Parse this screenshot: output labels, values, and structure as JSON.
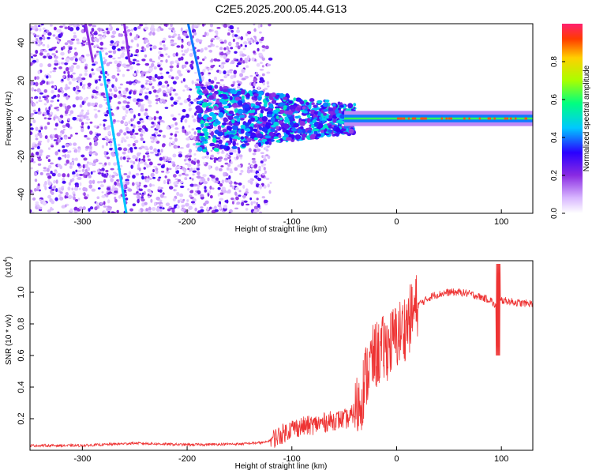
{
  "title": "C2E5.2025.200.05.44.G13",
  "chart_data": [
    {
      "type": "heatmap",
      "xlabel": "Height of straight line (km)",
      "ylabel": "Frequency (Hz)",
      "xlim": [
        -350,
        130
      ],
      "ylim": [
        -50,
        50
      ],
      "xticks": [
        -300,
        -200,
        -100,
        0,
        100
      ],
      "yticks": [
        -40,
        -20,
        0,
        20,
        40
      ],
      "colorbar": {
        "label": "Normalized spectral amplitude",
        "range": [
          0,
          1
        ],
        "ticks": [
          0.0,
          0.2,
          0.4,
          0.6,
          0.8
        ],
        "colors": [
          "#ffffff",
          "#d9b8ff",
          "#8a2be2",
          "#2a00ff",
          "#00c8ff",
          "#00ff80",
          "#a8ff00",
          "#ffd000",
          "#ff3b00",
          "#ff2070"
        ]
      },
      "streaks": [
        {
          "x": [
            -283,
            -258
          ],
          "y": [
            35,
            -50
          ],
          "level": 0.45
        },
        {
          "x": [
            -199,
            -187
          ],
          "y": [
            50,
            20
          ],
          "level": 0.4
        },
        {
          "x": [
            -260,
            -255
          ],
          "y": [
            50,
            30
          ],
          "level": 0.2
        },
        {
          "x": [
            -297,
            -290
          ],
          "y": [
            50,
            30
          ],
          "level": 0.2
        }
      ],
      "center_line": {
        "x": [
          -50,
          130
        ],
        "y": 0,
        "level": 0.85
      }
    },
    {
      "type": "line",
      "xlabel": "Height of straight line (km)",
      "ylabel": "SNR (10 * v/v)",
      "yscale_label": "(x10",
      "yscale_exp": "4",
      "xlim": [
        -350,
        130
      ],
      "ylim": [
        0,
        1.2
      ],
      "xticks": [
        -300,
        -200,
        -100,
        0,
        100
      ],
      "yticks": [
        0.2,
        0.4,
        0.6,
        0.8,
        1.0
      ],
      "color": "#ee3333",
      "x": [
        -350,
        -300,
        -250,
        -200,
        -150,
        -125,
        -110,
        -100,
        -80,
        -60,
        -45,
        -35,
        -30,
        -25,
        -20,
        -10,
        0,
        10,
        20,
        35,
        50,
        60,
        70,
        80,
        90,
        95,
        100,
        110,
        120,
        130
      ],
      "y": [
        0.03,
        0.03,
        0.045,
        0.035,
        0.04,
        0.05,
        0.1,
        0.14,
        0.16,
        0.19,
        0.2,
        0.3,
        0.45,
        0.55,
        0.6,
        0.65,
        0.72,
        0.8,
        0.92,
        0.98,
        1.0,
        1.0,
        0.99,
        0.97,
        0.95,
        0.9,
        0.95,
        0.94,
        0.93,
        0.93
      ]
    }
  ]
}
